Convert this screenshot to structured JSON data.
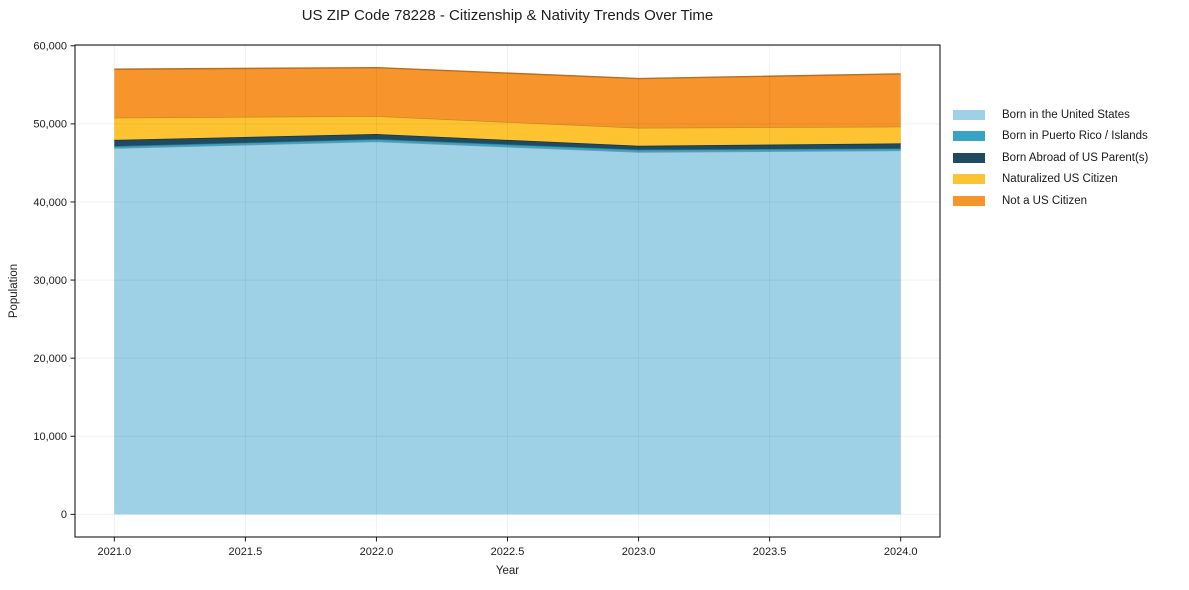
{
  "chart_data": {
    "type": "area",
    "stacked": true,
    "title": "US ZIP Code 78228 - Citizenship & Nativity Trends Over Time",
    "xlabel": "Year",
    "ylabel": "Population",
    "x": [
      2021,
      2022,
      2023,
      2024
    ],
    "series": [
      {
        "name": "Born in the United States",
        "color": "#9ed1e6",
        "values": [
          46900,
          47750,
          46400,
          46600
        ]
      },
      {
        "name": "Born in Puerto Rico / Islands",
        "color": "#38a3c3",
        "values": [
          250,
          300,
          300,
          260
        ]
      },
      {
        "name": "Born Abroad of US Parent(s)",
        "color": "#1f4a5f",
        "values": [
          800,
          650,
          500,
          640
        ]
      },
      {
        "name": "Naturalized US Citizen",
        "color": "#fdc330",
        "values": [
          2850,
          2300,
          2300,
          2150
        ]
      },
      {
        "name": "Not a US Citizen",
        "color": "#f7952c",
        "values": [
          6200,
          6200,
          6300,
          6750
        ]
      }
    ],
    "totals": [
      57000,
      57200,
      55800,
      56400
    ],
    "xlim": [
      2020.85,
      2024.15
    ],
    "ylim": [
      -2900,
      60100
    ],
    "xticks": {
      "values": [
        2021.0,
        2021.5,
        2022.0,
        2022.5,
        2023.0,
        2023.5,
        2024.0
      ],
      "labels": [
        "2021.0",
        "2021.5",
        "2022.0",
        "2022.5",
        "2023.0",
        "2023.5",
        "2024.0"
      ]
    },
    "yticks": {
      "values": [
        0,
        10000,
        20000,
        30000,
        40000,
        50000,
        60000
      ],
      "labels": [
        "0",
        "10,000",
        "20,000",
        "30,000",
        "40,000",
        "50,000",
        "60,000"
      ]
    },
    "grid": true,
    "legend_position": "right-outside"
  }
}
